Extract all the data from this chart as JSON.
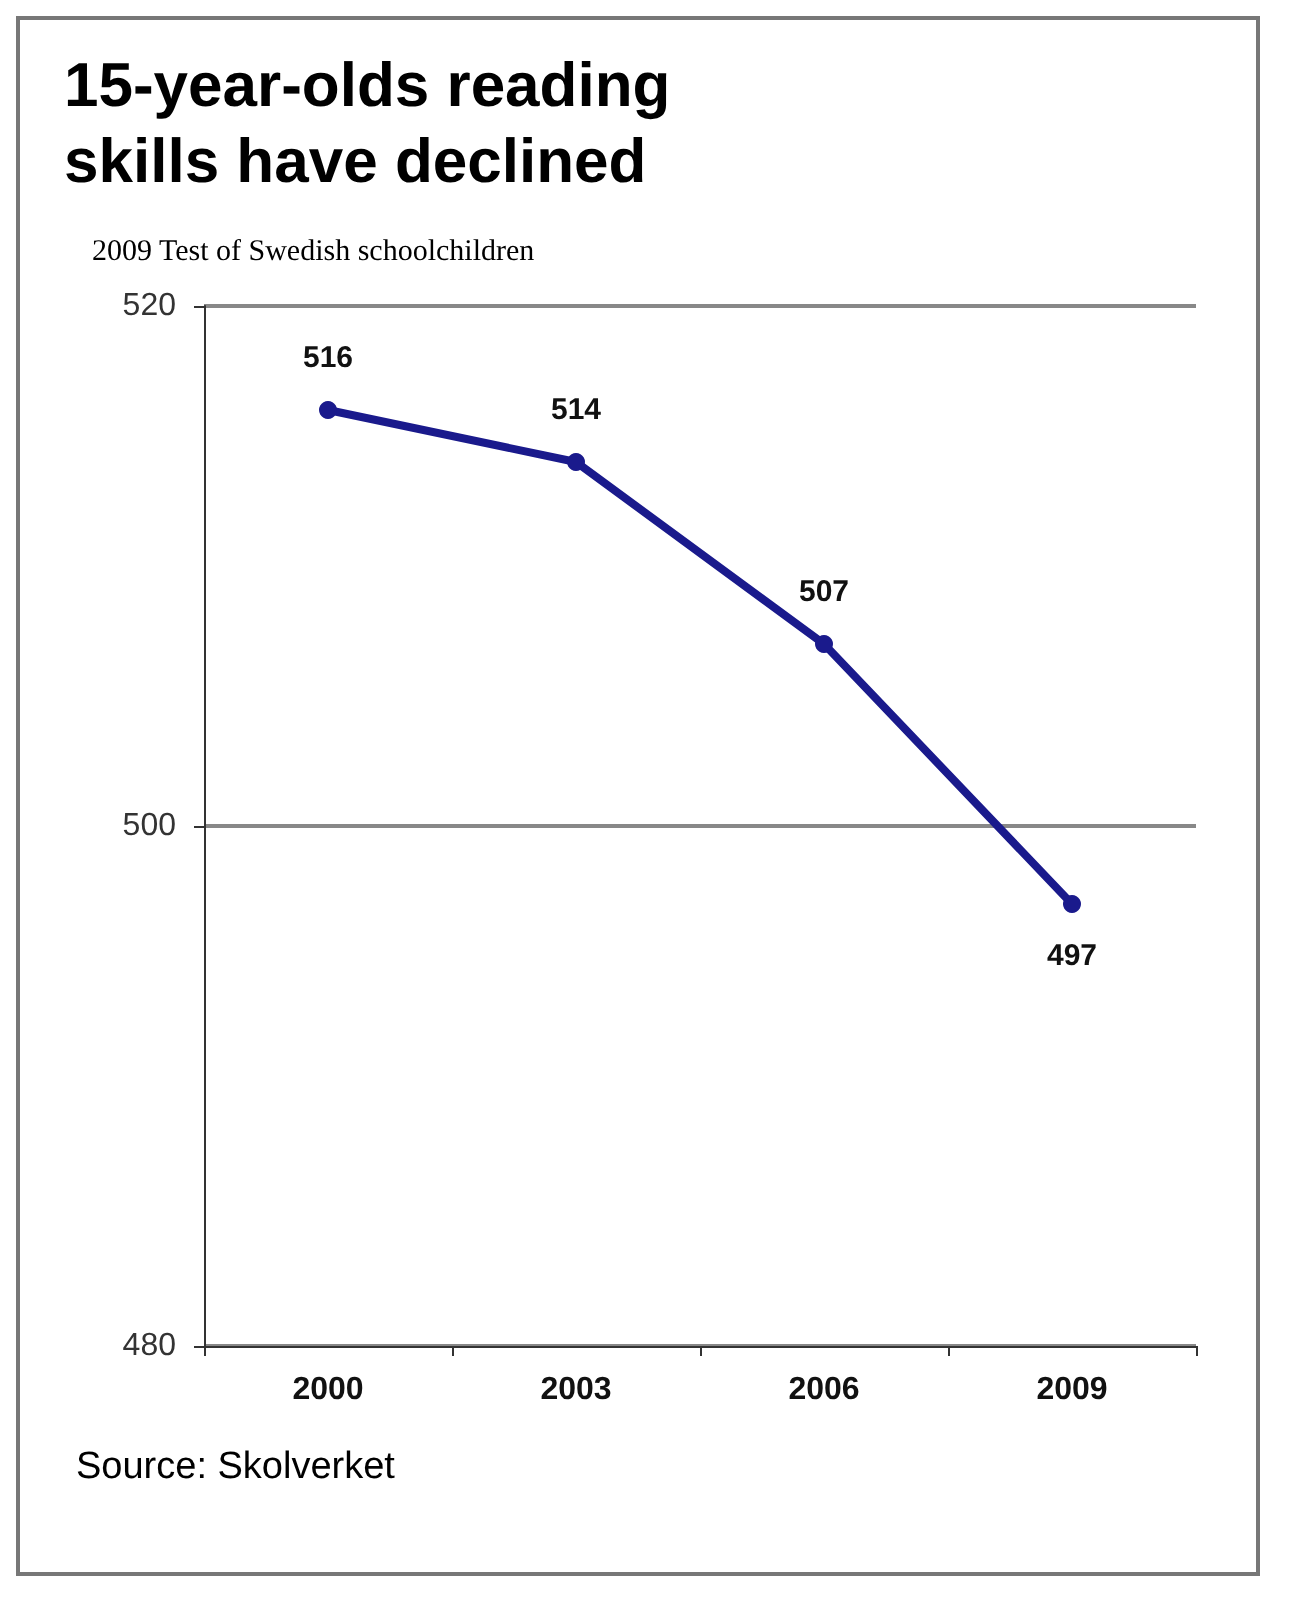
{
  "chart_data": {
    "type": "line",
    "title": "15-year-olds reading skills have declined",
    "subtitle": "2009 Test of Swedish schoolchildren",
    "categories": [
      "2000",
      "2003",
      "2006",
      "2009"
    ],
    "series": [
      {
        "color": "#1a1a8c",
        "values": [
          516,
          514,
          507,
          497
        ]
      }
    ],
    "ylim": [
      480,
      520
    ],
    "yticks": [
      480,
      500,
      520
    ],
    "grid": "y",
    "marker": "circle",
    "data_labels": true,
    "annotations": [
      "Source: Skolverket"
    ]
  }
}
